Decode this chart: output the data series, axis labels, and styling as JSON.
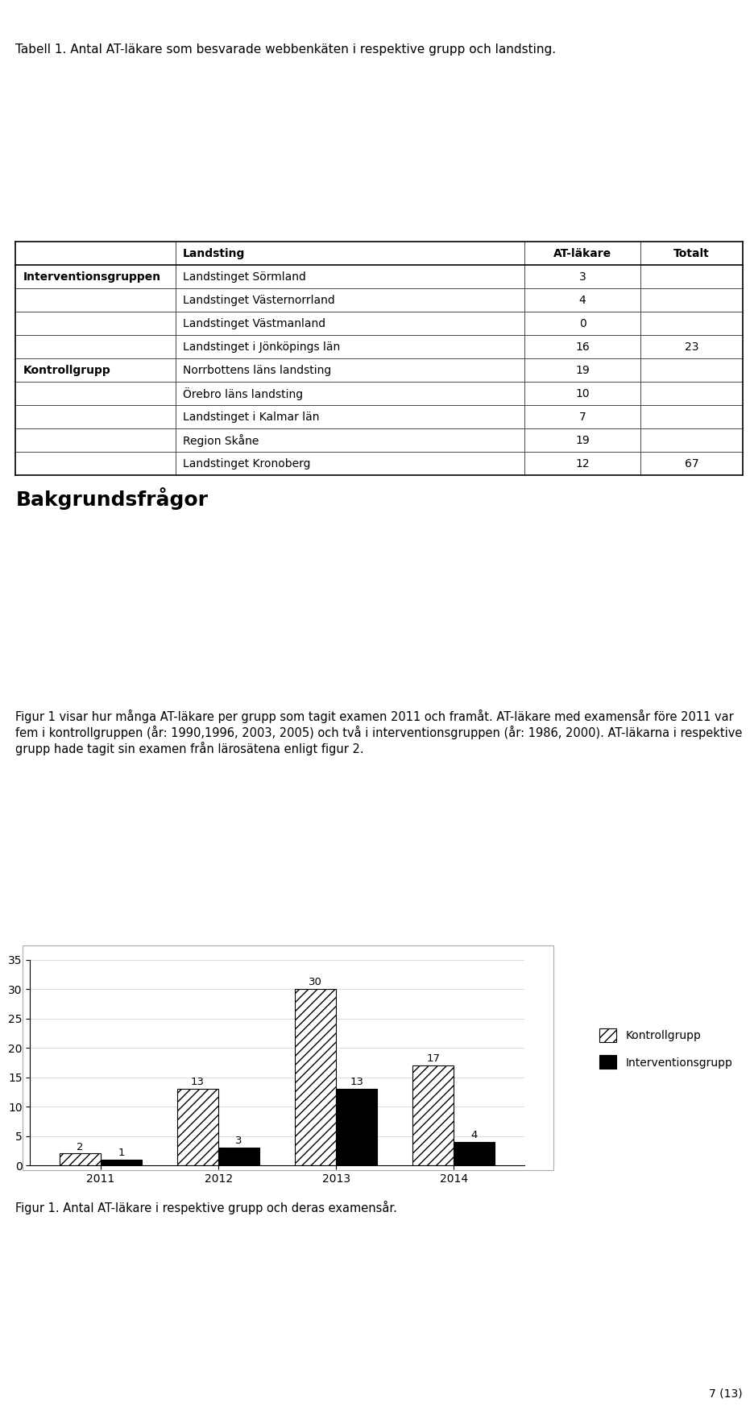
{
  "title_main": "Tabell 1. Antal AT-läkare som besvarade webbenkäten i respektive grupp och landsting.",
  "table_headers": [
    "",
    "Landsting",
    "AT-läkare",
    "Totalt"
  ],
  "table_rows": [
    [
      "Interventionsgruppen",
      "Landstinget Sörmland",
      "3",
      ""
    ],
    [
      "",
      "Landstinget Västernorrland",
      "4",
      ""
    ],
    [
      "",
      "Landstinget Västmanland",
      "0",
      ""
    ],
    [
      "",
      "Landstinget i Jönköpings län",
      "16",
      "23"
    ],
    [
      "Kontrollgrupp",
      "Norrbottens läns landsting",
      "19",
      ""
    ],
    [
      "",
      "Örebro läns landsting",
      "10",
      ""
    ],
    [
      "",
      "Landstinget i Kalmar län",
      "7",
      ""
    ],
    [
      "",
      "Region Skåne",
      "19",
      ""
    ],
    [
      "",
      "Landstinget Kronoberg",
      "12",
      "67"
    ]
  ],
  "section_title": "Bakgrundsfrågor",
  "paragraph1": "Figur 1 visar hur många AT-läkare per grupp som tagit examen 2011 och framåt. AT-läkare med examensår före 2011 var fem i kontrollgruppen (år: 1990,1996, 2003, 2005) och två i interventionsgruppen (år: 1986, 2000). AT-läkarna i respektive grupp hade tagit sin examen från lärosätena enligt figur 2.",
  "chart_years": [
    "2011",
    "2012",
    "2013",
    "2014"
  ],
  "kontrollgrupp_values": [
    2,
    13,
    30,
    17
  ],
  "interventionsgrupp_values": [
    1,
    3,
    13,
    4
  ],
  "chart_ylim": [
    0,
    35
  ],
  "chart_yticks": [
    0,
    5,
    10,
    15,
    20,
    25,
    30,
    35
  ],
  "legend_kontroll": "Kontrollgrupp",
  "legend_intervention": "Interventionsgrupp",
  "fig_caption": "Figur 1. Antal AT-läkare i respektive grupp och deras examensår.",
  "page_number": "7 (13)",
  "bg_color": "#ffffff",
  "text_color": "#000000",
  "bar_hatch_kontroll": "///",
  "bar_color_kontroll": "#ffffff",
  "bar_edge_kontroll": "#000000",
  "bar_color_intervention": "#000000",
  "bar_edge_intervention": "#000000"
}
